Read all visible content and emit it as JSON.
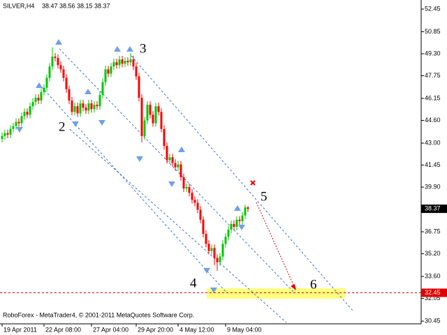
{
  "chart_data": {
    "type": "candlestick",
    "symbol": "SILVER,H4",
    "footer": "RoboForex - MetaTrader4, © 2001-2011 MetaQuotes Software Corp.",
    "up_color": "#00c800",
    "down_color": "#ff0000",
    "xlim": [
      -0.75,
      150
    ],
    "ylim": [
      30.26,
      52.99
    ],
    "xticks": [
      {
        "value": 0,
        "label": "19 Apr 2011"
      },
      {
        "value": 15,
        "label": "22 Apr 08:00"
      },
      {
        "value": 32,
        "label": "27 Apr 04:00"
      },
      {
        "value": 48,
        "label": "29 Apr 20:00"
      },
      {
        "value": 63,
        "label": "4 May 12:00"
      },
      {
        "value": 80,
        "label": "9 May 04:00"
      }
    ],
    "yticks": [
      52.45,
      50.85,
      {
        "value": 49.3,
        "label": "49.30"
      },
      47.75,
      46.15,
      {
        "value": 44.6,
        "label": "44.60"
      },
      {
        "value": 43,
        "label": "43.00"
      },
      41.45,
      {
        "value": 39.9,
        "label": "39.90"
      },
      36.75,
      {
        "value": 35.2,
        "label": "35.20"
      },
      {
        "value": 33.6,
        "label": "33.60"
      },
      32.05,
      30.45
    ],
    "target": 32.45,
    "wave_labels": [
      "2",
      "3",
      "4",
      "5",
      "6"
    ],
    "ohlc": [
      [
        43.3,
        43.75,
        43.05,
        43.5
      ],
      [
        43.5,
        43.95,
        43.25,
        43.7
      ],
      [
        43.7,
        43.95,
        43.35,
        43.6
      ],
      [
        43.6,
        44.25,
        43.35,
        44.0
      ],
      [
        44.0,
        44.45,
        43.75,
        44.2
      ],
      [
        44.2,
        44.75,
        43.95,
        44.5
      ],
      [
        44.5,
        44.75,
        44.15,
        44.4
      ],
      [
        44.4,
        45.15,
        44.15,
        44.9
      ],
      [
        44.9,
        45.45,
        44.65,
        45.2
      ],
      [
        45.2,
        45.45,
        44.75,
        45.0
      ],
      [
        45.0,
        45.85,
        44.75,
        45.6
      ],
      [
        45.6,
        46.15,
        45.35,
        45.9
      ],
      [
        45.9,
        46.45,
        45.65,
        46.2
      ],
      [
        46.2,
        46.45,
        45.75,
        46.0
      ],
      [
        46.0,
        46.85,
        45.75,
        46.6
      ],
      [
        46.6,
        47.15,
        46.35,
        46.9
      ],
      [
        46.9,
        47.85,
        46.65,
        47.6
      ],
      [
        47.6,
        48.65,
        47.35,
        48.4
      ],
      [
        48.4,
        49.75,
        48.15,
        49.1
      ],
      [
        49.1,
        49.35,
        48.75,
        49.0
      ],
      [
        49.0,
        49.25,
        48.25,
        48.5
      ],
      [
        48.5,
        48.75,
        47.95,
        48.2
      ],
      [
        48.2,
        48.45,
        47.35,
        47.6
      ],
      [
        47.6,
        47.85,
        46.55,
        46.8
      ],
      [
        46.8,
        47.05,
        45.75,
        46.0
      ],
      [
        46.0,
        46.25,
        44.95,
        45.2
      ],
      [
        45.2,
        45.85,
        44.95,
        45.6
      ],
      [
        45.6,
        45.85,
        44.85,
        45.1
      ],
      [
        45.1,
        46.05,
        44.85,
        45.8
      ],
      [
        45.8,
        46.05,
        45.25,
        45.5
      ],
      [
        45.5,
        45.75,
        45.05,
        45.3
      ],
      [
        45.3,
        46.05,
        45.05,
        45.8
      ],
      [
        45.8,
        46.05,
        45.15,
        45.4
      ],
      [
        45.4,
        45.95,
        45.15,
        45.7
      ],
      [
        45.7,
        45.95,
        45.35,
        45.6
      ],
      [
        45.6,
        46.65,
        45.35,
        46.4
      ],
      [
        46.4,
        47.55,
        46.15,
        47.3
      ],
      [
        47.3,
        48.45,
        47.05,
        48.2
      ],
      [
        48.2,
        48.45,
        47.65,
        47.9
      ],
      [
        47.9,
        48.65,
        47.65,
        48.4
      ],
      [
        48.4,
        48.95,
        48.15,
        48.7
      ],
      [
        48.7,
        48.95,
        48.25,
        48.5
      ],
      [
        48.5,
        49.15,
        48.25,
        48.9
      ],
      [
        48.9,
        49.15,
        48.35,
        48.6
      ],
      [
        48.6,
        49.05,
        48.35,
        48.8
      ],
      [
        48.8,
        49.05,
        48.45,
        48.7
      ],
      [
        48.7,
        49.35,
        48.45,
        48.9
      ],
      [
        48.9,
        49.15,
        48.15,
        48.4
      ],
      [
        48.4,
        48.65,
        47.45,
        47.7
      ],
      [
        47.7,
        47.95,
        45.95,
        46.2
      ],
      [
        46.2,
        46.45,
        43.05,
        43.5
      ],
      [
        43.5,
        44.85,
        43.25,
        44.6
      ],
      [
        44.6,
        45.95,
        44.35,
        45.7
      ],
      [
        45.7,
        45.95,
        44.75,
        45.0
      ],
      [
        45.0,
        45.25,
        44.15,
        44.4
      ],
      [
        44.4,
        45.85,
        44.15,
        45.6
      ],
      [
        45.6,
        45.85,
        44.95,
        45.2
      ],
      [
        45.2,
        45.45,
        43.75,
        44.0
      ],
      [
        44.0,
        44.25,
        42.55,
        42.8
      ],
      [
        42.8,
        43.05,
        41.55,
        41.8
      ],
      [
        41.8,
        42.25,
        41.55,
        42.0
      ],
      [
        42.0,
        42.25,
        41.35,
        41.6
      ],
      [
        41.6,
        41.85,
        41.05,
        41.3
      ],
      [
        41.3,
        41.75,
        41.05,
        41.5
      ],
      [
        41.5,
        41.75,
        40.35,
        40.6
      ],
      [
        40.6,
        40.85,
        39.55,
        39.8
      ],
      [
        39.8,
        40.15,
        39.55,
        39.9
      ],
      [
        39.9,
        40.15,
        39.25,
        39.5
      ],
      [
        39.5,
        39.75,
        38.75,
        39.0
      ],
      [
        39.0,
        39.25,
        38.55,
        38.8
      ],
      [
        38.8,
        39.05,
        38.05,
        38.3
      ],
      [
        38.3,
        38.55,
        37.35,
        37.6
      ],
      [
        37.6,
        37.85,
        36.35,
        36.6
      ],
      [
        36.6,
        36.85,
        35.65,
        35.9
      ],
      [
        35.9,
        36.15,
        35.15,
        35.4
      ],
      [
        35.4,
        35.85,
        35.15,
        35.6
      ],
      [
        35.6,
        35.85,
        34.4,
        34.9
      ],
      [
        34.9,
        35.15,
        34.0,
        34.6
      ],
      [
        34.6,
        35.25,
        34.35,
        35.0
      ],
      [
        35.0,
        36.15,
        34.75,
        35.9
      ],
      [
        35.9,
        36.65,
        35.65,
        36.4
      ],
      [
        36.4,
        37.15,
        36.15,
        36.9
      ],
      [
        36.9,
        37.55,
        36.65,
        37.3
      ],
      [
        37.3,
        37.55,
        36.85,
        37.1
      ],
      [
        37.1,
        37.85,
        36.85,
        37.6
      ],
      [
        37.6,
        37.85,
        37.25,
        37.5
      ],
      [
        37.5,
        38.15,
        37.25,
        37.9
      ],
      [
        37.9,
        38.65,
        37.65,
        38.47
      ],
      [
        38.47,
        38.56,
        38.15,
        38.37
      ]
    ]
  }
}
